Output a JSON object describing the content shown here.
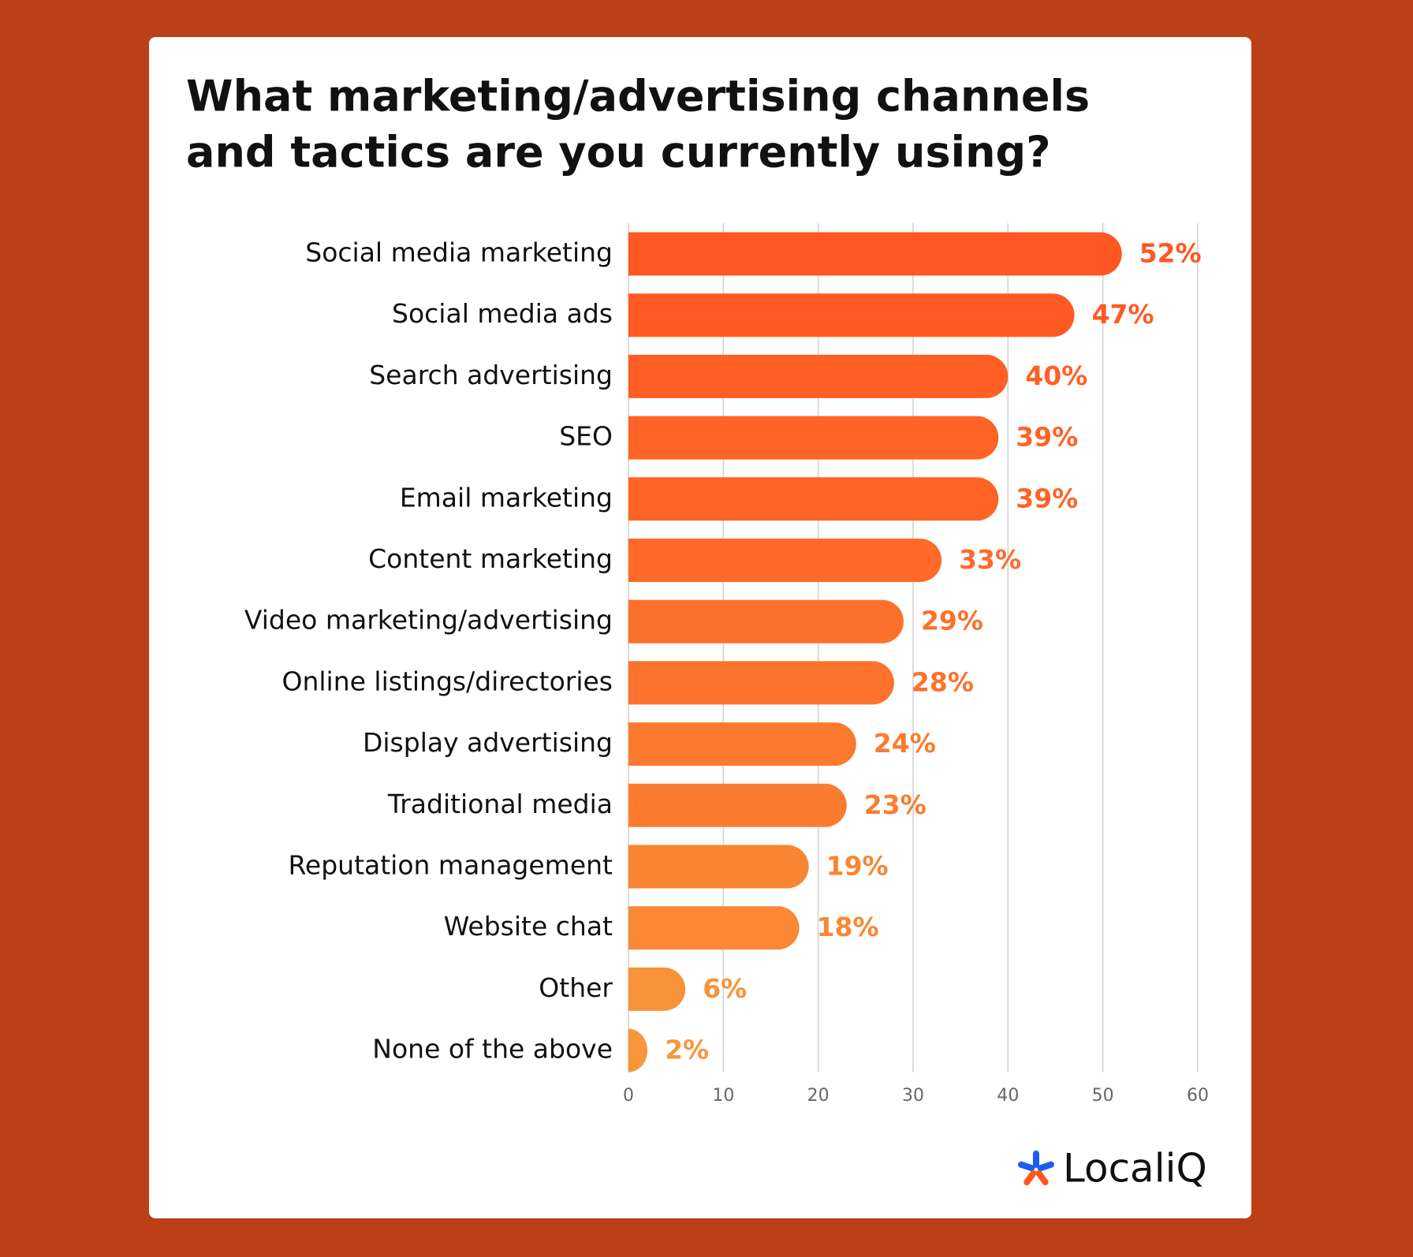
{
  "chart_data": {
    "type": "hbar",
    "title": [
      "What marketing/advertising channels",
      "and tactics are you currently using?"
    ],
    "categories": [
      "Social media marketing",
      "Social media ads",
      "Search advertising",
      "SEO",
      "Email marketing",
      "Content marketing",
      "Video marketing/advertising",
      "Online listings/directories",
      "Display advertising",
      "Traditional media",
      "Reputation management",
      "Website chat",
      "Other",
      "None of the above"
    ],
    "values": [
      52,
      47,
      40,
      39,
      39,
      33,
      29,
      28,
      24,
      23,
      19,
      18,
      6,
      2
    ],
    "value_labels": [
      "52%",
      "47%",
      "40%",
      "39%",
      "39%",
      "33%",
      "29%",
      "28%",
      "24%",
      "23%",
      "19%",
      "18%",
      "6%",
      "2%"
    ],
    "colors": [
      "#ff5722",
      "#ff5a23",
      "#ff5f25",
      "#ff6326",
      "#ff6427",
      "#ff6a29",
      "#fd702b",
      "#fd722c",
      "#fb7a2e",
      "#fb7c2f",
      "#f98532",
      "#f98733",
      "#f79338",
      "#f7963a"
    ],
    "xlim": [
      0,
      60
    ],
    "xticks": [
      0,
      10,
      20,
      30,
      40,
      50,
      60
    ],
    "grid": true
  },
  "branding": {
    "logo": "LocaliQ"
  }
}
